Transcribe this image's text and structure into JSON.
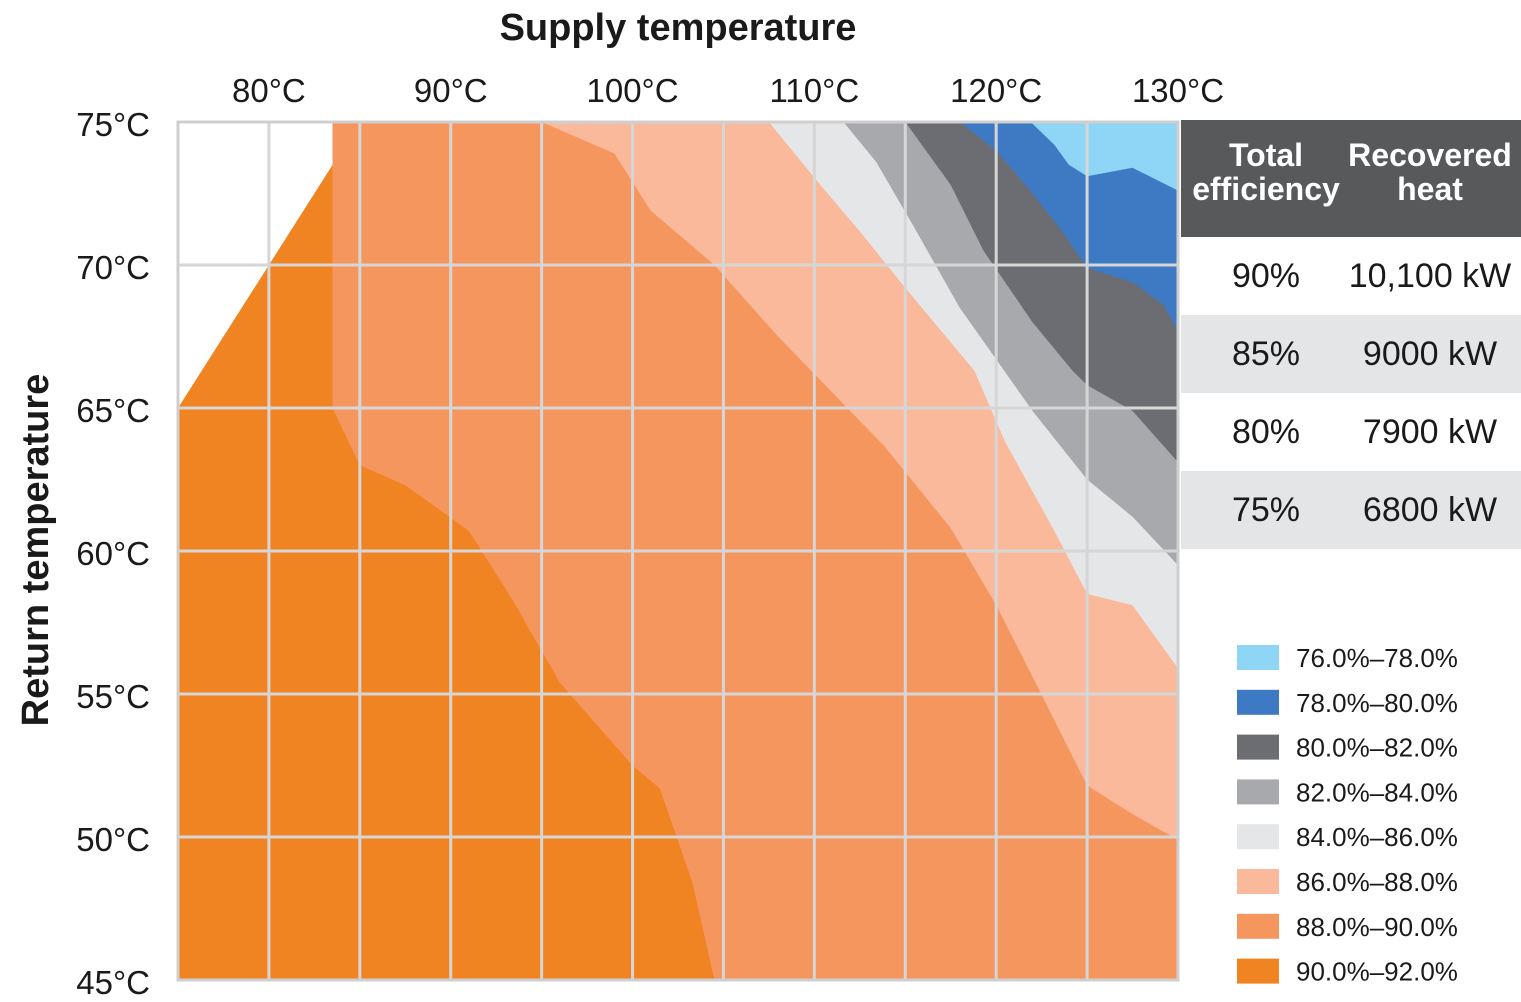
{
  "chart_data": {
    "type": "heatmap",
    "title": "Supply temperature",
    "xlabel": "Supply temperature",
    "ylabel": "Return temperature",
    "x_tick_labels": [
      "80°C",
      "90°C",
      "100°C",
      "110°C",
      "120°C",
      "130°C"
    ],
    "y_tick_labels": [
      "75°C",
      "70°C",
      "65°C",
      "60°C",
      "55°C",
      "50°C",
      "45°C"
    ],
    "xlim": [
      75,
      130
    ],
    "ylim": [
      45,
      75
    ],
    "x_units": "°C",
    "y_units": "°C",
    "grid": true,
    "legend_position": "bottom-right",
    "bands": [
      {
        "label": "76.0%–78.0%",
        "color": "#8FD6F6"
      },
      {
        "label": "78.0%–80.0%",
        "color": "#3E7AC3"
      },
      {
        "label": "80.0%–82.0%",
        "color": "#6B6D72"
      },
      {
        "label": "82.0%–84.0%",
        "color": "#A7A9AC"
      },
      {
        "label": "84.0%–86.0%",
        "color": "#E5E6E8"
      },
      {
        "label": "86.0%–88.0%",
        "color": "#F9B99A"
      },
      {
        "label": "88.0%–90.0%",
        "color": "#F5965F"
      },
      {
        "label": "90.0%–92.0%",
        "color": "#F08322"
      }
    ],
    "region_upper_boundary": [
      [
        75,
        65
      ],
      [
        85,
        75
      ]
    ],
    "band_boundaries": [
      {
        "between": "90.0%–92.0% | 88.0%–90.0%",
        "points": [
          [
            83.5,
            75
          ],
          [
            83.5,
            65
          ],
          [
            85,
            63
          ],
          [
            87.5,
            62.3
          ],
          [
            91,
            60.7
          ],
          [
            93.3,
            58.4
          ],
          [
            96,
            55.4
          ],
          [
            100,
            52.5
          ],
          [
            101.5,
            51.7
          ],
          [
            103.3,
            48.4
          ],
          [
            104.5,
            45
          ]
        ]
      },
      {
        "between": "88.0%–90.0% | 86.0%–88.0%",
        "points": [
          [
            95,
            75
          ],
          [
            99,
            73.9
          ],
          [
            101,
            71.9
          ],
          [
            104.5,
            70
          ],
          [
            108,
            67.5
          ],
          [
            113.8,
            63.7
          ],
          [
            117.5,
            60.8
          ],
          [
            120,
            58.1
          ],
          [
            122,
            55.6
          ],
          [
            125,
            51.8
          ],
          [
            127.5,
            50.8
          ],
          [
            130,
            49.9
          ]
        ]
      },
      {
        "between": "86.0%–88.0% | 84.0%–86.0%",
        "points": [
          [
            107.5,
            75
          ],
          [
            110.2,
            72.9
          ],
          [
            112.6,
            71.1
          ],
          [
            115,
            69.2
          ],
          [
            118.8,
            66.3
          ],
          [
            120.5,
            63.8
          ],
          [
            123.2,
            60.7
          ],
          [
            125,
            58.5
          ],
          [
            127.5,
            58.1
          ],
          [
            130,
            55.9
          ]
        ]
      },
      {
        "between": "84.0%–86.0% | 82.0%–84.0%",
        "points": [
          [
            111.6,
            75
          ],
          [
            113.4,
            73.6
          ],
          [
            115.5,
            71.3
          ],
          [
            118,
            68.5
          ],
          [
            120,
            66.7
          ],
          [
            122,
            64.9
          ],
          [
            125,
            62.5
          ],
          [
            127.5,
            61.2
          ],
          [
            130,
            59.5
          ]
        ]
      },
      {
        "between": "82.0%–84.0% | 80.0%–82.0%",
        "points": [
          [
            115,
            75
          ],
          [
            117.5,
            72.8
          ],
          [
            119.3,
            70.5
          ],
          [
            122,
            68
          ],
          [
            124.2,
            66.3
          ],
          [
            125,
            65.8
          ],
          [
            127.5,
            64.9
          ],
          [
            130,
            63.1
          ]
        ]
      },
      {
        "between": "80.0%–82.0% | 78.0%–80.0%",
        "points": [
          [
            118,
            75
          ],
          [
            120,
            74
          ],
          [
            122,
            72.5
          ],
          [
            123.6,
            71.2
          ],
          [
            125,
            69.9
          ],
          [
            127.5,
            69.4
          ],
          [
            129.2,
            68.6
          ],
          [
            130,
            67.7
          ]
        ]
      },
      {
        "between": "78.0%–80.0% | 76.0%–78.0%",
        "points": [
          [
            121.9,
            75
          ],
          [
            123.2,
            74.2
          ],
          [
            124,
            73.5
          ],
          [
            125,
            73.1
          ],
          [
            127.5,
            73.4
          ],
          [
            130,
            72.6
          ]
        ]
      }
    ],
    "table": {
      "headers": [
        [
          "Total",
          "efficiency"
        ],
        [
          "Recovered",
          "heat"
        ]
      ],
      "rows": [
        {
          "efficiency": "90%",
          "heat": "10,100 kW"
        },
        {
          "efficiency": "85%",
          "heat": "9000 kW"
        },
        {
          "efficiency": "80%",
          "heat": "7900 kW"
        },
        {
          "efficiency": "75%",
          "heat": "6800 kW"
        }
      ],
      "header_color": "#58595B",
      "row_colors": [
        "#FFFFFF",
        "#E4E5E7",
        "#FFFFFF",
        "#E4E5E7"
      ]
    }
  }
}
